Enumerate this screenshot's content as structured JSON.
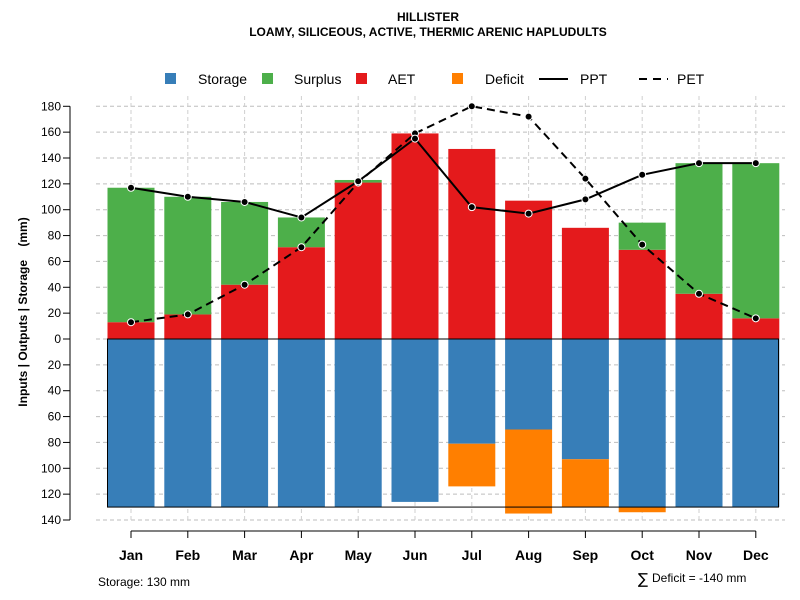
{
  "chart_data": {
    "type": "bar",
    "title": "HILLISTER",
    "subtitle": "LOAMY, SILICEOUS, ACTIVE, THERMIC ARENIC HAPLUDULTS",
    "ylabel": "Inputs | Outputs | Storage    (mm)",
    "categories": [
      "Jan",
      "Feb",
      "Mar",
      "Apr",
      "May",
      "Jun",
      "Jul",
      "Aug",
      "Sep",
      "Oct",
      "Nov",
      "Dec"
    ],
    "ylim": [
      -140,
      180
    ],
    "yticks": [
      180,
      160,
      140,
      120,
      100,
      80,
      60,
      40,
      20,
      0,
      -20,
      -40,
      -60,
      -80,
      -100,
      -120,
      -140
    ],
    "ytick_labels": [
      "180",
      "160",
      "140",
      "120",
      "100",
      "80",
      "60",
      "40",
      "20",
      "0",
      "20",
      "40",
      "60",
      "80",
      "100",
      "120",
      "140"
    ],
    "colors": {
      "storage": "#377EB8",
      "surplus": "#4DAF4A",
      "aet": "#E41A1C",
      "deficit": "#FF7F00"
    },
    "legend": [
      {
        "key": "storage",
        "label": "Storage",
        "kind": "box"
      },
      {
        "key": "surplus",
        "label": "Surplus",
        "kind": "box"
      },
      {
        "key": "aet",
        "label": "AET",
        "kind": "box"
      },
      {
        "key": "deficit",
        "label": "Deficit",
        "kind": "box"
      },
      {
        "key": "ppt",
        "label": "PPT",
        "kind": "solid"
      },
      {
        "key": "pet",
        "label": "PET",
        "kind": "dashed"
      }
    ],
    "series": [
      {
        "name": "AET",
        "values": [
          13,
          19,
          42,
          71,
          121,
          159,
          147,
          107,
          86,
          69,
          35,
          16
        ]
      },
      {
        "name": "Surplus",
        "values": [
          104,
          91,
          64,
          23,
          2,
          0,
          0,
          0,
          0,
          21,
          101,
          120
        ]
      },
      {
        "name": "Storage",
        "values": [
          130,
          130,
          130,
          130,
          130,
          126,
          81,
          70,
          93,
          130,
          130,
          130
        ]
      },
      {
        "name": "Deficit",
        "values": [
          0,
          0,
          0,
          0,
          0,
          0,
          33,
          65,
          37,
          4,
          0,
          0
        ]
      },
      {
        "name": "PPT",
        "values": [
          117,
          110,
          106,
          94,
          122,
          155,
          102,
          97,
          108,
          127,
          136,
          136
        ]
      },
      {
        "name": "PET",
        "values": [
          13,
          19,
          42,
          71,
          121,
          159,
          180,
          172,
          124,
          73,
          35,
          16
        ]
      }
    ],
    "storage_capacity": 130
  },
  "footer": {
    "storage_note": "Storage: 130 mm",
    "deficit_symbol": "∑",
    "deficit_note": "Deficit = -140 mm"
  }
}
